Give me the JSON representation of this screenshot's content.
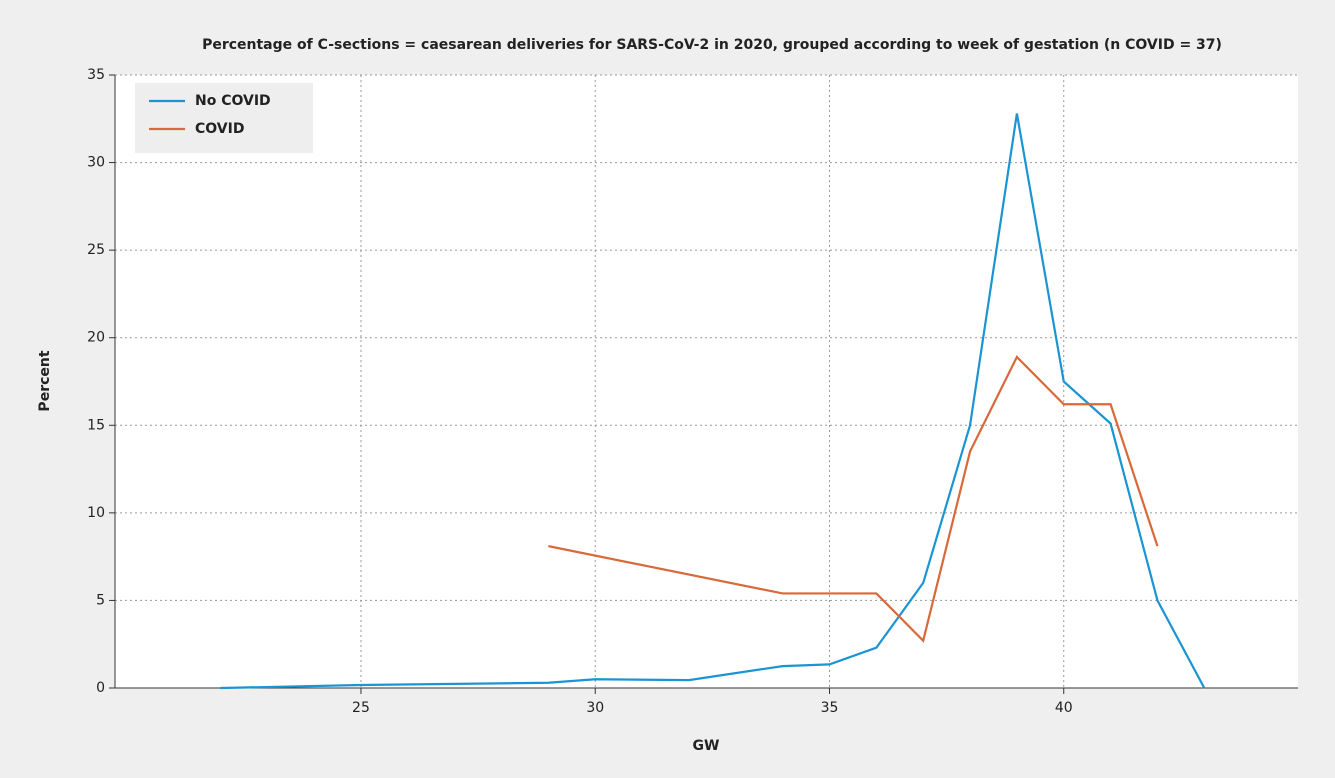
{
  "chart_data": {
    "type": "line",
    "title": "Percentage of C-sections = caesarean deliveries for SARS-CoV-2 in 2020, grouped according to week of gestation (n COVID = 37)",
    "x_label": "GW",
    "y_label": "Percent",
    "series": [
      {
        "name": "No COVID",
        "color": "#1a94d2",
        "x": [
          22,
          25,
          29,
          30,
          32,
          34,
          35,
          36,
          37,
          38,
          39,
          40,
          41,
          42,
          43
        ],
        "values": [
          0,
          0.17,
          0.3,
          0.5,
          0.45,
          1.25,
          1.35,
          2.3,
          6,
          15,
          32.8,
          17.5,
          15.1,
          5,
          0
        ]
      },
      {
        "name": "COVID",
        "color": "#d9683a",
        "x": [
          29,
          34,
          35,
          36,
          37,
          38,
          39,
          40,
          41,
          42
        ],
        "values": [
          8.1,
          5.4,
          5.4,
          5.4,
          2.7,
          13.5,
          18.9,
          16.2,
          16.2,
          8.1
        ]
      }
    ],
    "xlim": [
      19.75,
      45
    ],
    "xticks": [
      25,
      30,
      35,
      40
    ],
    "ylim": [
      0,
      35
    ],
    "yticks": [
      0,
      5,
      10,
      15,
      20,
      25,
      30,
      35
    ],
    "grid": true,
    "legend": "upper-left"
  }
}
